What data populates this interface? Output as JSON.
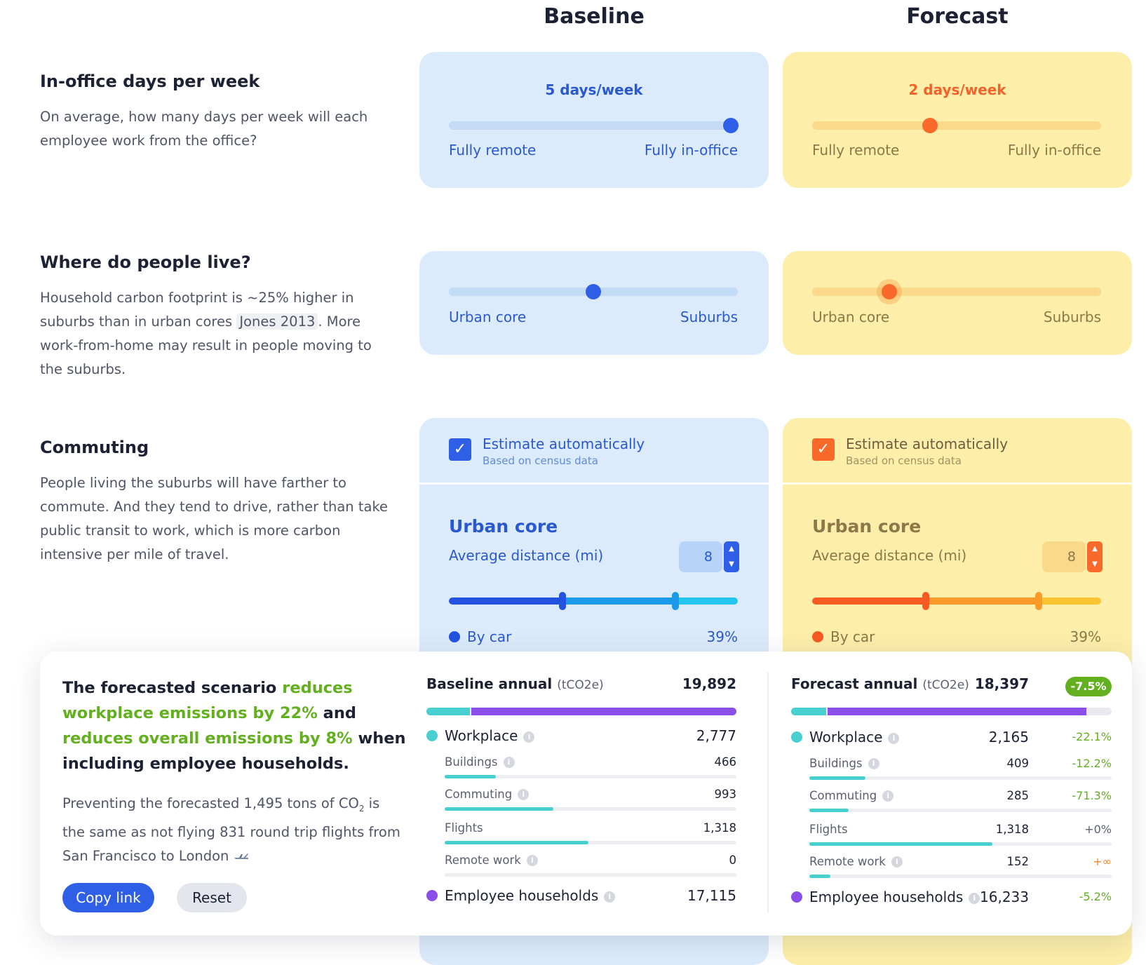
{
  "columns": {
    "baseline": "Baseline",
    "forecast": "Forecast"
  },
  "colors": {
    "blue_accent": "#2f5fe6",
    "orange_accent": "#f96a2a",
    "green_reduce": "#62b01e",
    "workplace": "#48cfd0",
    "households": "#8b4ee8"
  },
  "section_office": {
    "title": "In-office days per week",
    "description": "On average, how many days per week will each employee work from the office?",
    "baseline": {
      "value_label": "5 days/week",
      "days": 5,
      "min_label": "Fully remote",
      "max_label": "Fully in-office"
    },
    "forecast": {
      "value_label": "2 days/week",
      "days": 2,
      "min_label": "Fully remote",
      "max_label": "Fully in-office"
    }
  },
  "section_live": {
    "title": "Where do people live?",
    "desc_before": "Household carbon footprint is ~25% higher in suburbs than in urban cores ",
    "citation": "Jones 2013",
    "desc_after": ". More work-from-home may result in people moving to the suburbs.",
    "baseline": {
      "position": 0.5,
      "min_label": "Urban core",
      "max_label": "Suburbs"
    },
    "forecast": {
      "position": 0.26,
      "min_label": "Urban core",
      "max_label": "Suburbs"
    }
  },
  "section_commute": {
    "title": "Commuting",
    "description": "People living the suburbs will have farther to commute. And they tend to drive, rather than take public transit to work, which is more carbon intensive per mile of travel.",
    "baseline": {
      "checkbox_icon": "checkmark-icon",
      "estimate_label": "Estimate automatically",
      "estimate_sub": "Based on census data",
      "zone_title": "Urban core",
      "distance_label": "Average distance (mi)",
      "distance_value": "8",
      "mode_label": "By car",
      "mode_pct": "39%"
    },
    "forecast": {
      "checkbox_icon": "checkmark-icon",
      "estimate_label": "Estimate automatically",
      "estimate_sub": "Based on census data",
      "zone_title": "Urban core",
      "distance_label": "Average distance (mi)",
      "distance_value": "8",
      "mode_label": "By car",
      "mode_pct": "39%"
    }
  },
  "summary": {
    "h_1": "The forecasted scenario ",
    "h_2": "reduces workplace emissions by 22%",
    "h_3": " and ",
    "h_4": "reduces overall emissions by 8%",
    "h_5": " when including employee households.",
    "p_1": "Preventing the forecasted 1,495 tons of CO",
    "p_sub": "2",
    "p_2": " is the same as not flying 831 round trip flights from San Francisco to London",
    "p_icon": "airplane-icon",
    "copy_link": "Copy link",
    "reset": "Reset"
  },
  "baseline_annual": {
    "title": "Baseline annual",
    "unit": "(tCO2e)",
    "total": "19,892",
    "workplace": {
      "label": "Workplace",
      "value": "2,777"
    },
    "buildings": {
      "label": "Buildings",
      "value": "466"
    },
    "commuting": {
      "label": "Commuting",
      "value": "993"
    },
    "flights": {
      "label": "Flights",
      "value": "1,318"
    },
    "remote": {
      "label": "Remote work",
      "value": "0"
    },
    "households": {
      "label": "Employee households",
      "value": "17,115"
    }
  },
  "forecast_annual": {
    "title": "Forecast annual",
    "unit": "(tCO2e)",
    "total": "18,397",
    "change": "-7.5%",
    "workplace": {
      "label": "Workplace",
      "value": "2,165",
      "delta": "-22.1%"
    },
    "buildings": {
      "label": "Buildings",
      "value": "409",
      "delta": "-12.2%"
    },
    "commuting": {
      "label": "Commuting",
      "value": "285",
      "delta": "-71.3%"
    },
    "flights": {
      "label": "Flights",
      "value": "1,318",
      "delta": "+0%"
    },
    "remote": {
      "label": "Remote work",
      "value": "152",
      "delta": "+∞"
    },
    "households": {
      "label": "Employee households",
      "value": "16,233",
      "delta": "-5.2%"
    }
  }
}
